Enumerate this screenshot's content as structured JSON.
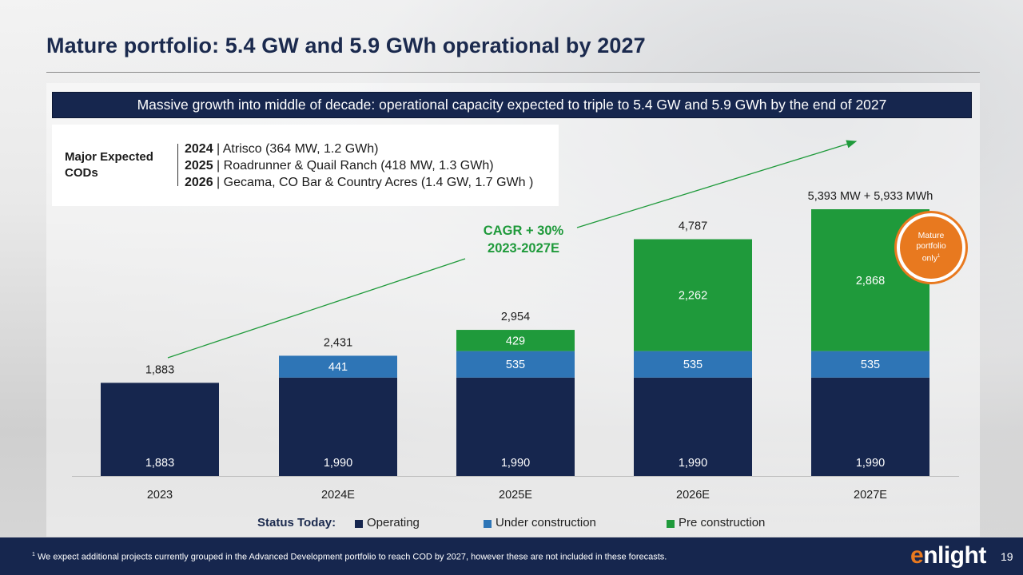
{
  "title": "Mature portfolio: 5.4 GW and 5.9 GWh operational by 2027",
  "banner": "Massive growth into middle of decade: operational capacity expected to triple to 5.4 GW and 5.9 GWh by the end of 2027",
  "cods": {
    "label": "Major Expected CODs",
    "items": [
      {
        "year": "2024",
        "text": " | Atrisco (364 MW, 1.2 GWh)"
      },
      {
        "year": "2025",
        "text": " | Roadrunner & Quail Ranch (418 MW, 1.3 GWh)"
      },
      {
        "year": "2026",
        "text": " | Gecama, CO Bar & Country Acres (1.4 GW, 1.7 GWh )"
      }
    ]
  },
  "cagr": {
    "line1": "CAGR + 30%",
    "line2": "2023-2027E"
  },
  "badge": {
    "line1": "Mature",
    "line2": "portfolio",
    "line3": "only",
    "sup": "1"
  },
  "chart_data": {
    "type": "bar",
    "stacked": true,
    "categories": [
      "2023",
      "2024E",
      "2025E",
      "2026E",
      "2027E"
    ],
    "series": [
      {
        "name": "Operating",
        "color": "#16264e",
        "values": [
          1883,
          1990,
          1990,
          1990,
          1990
        ]
      },
      {
        "name": "Under construction",
        "color": "#2e75b6",
        "values": [
          0,
          441,
          535,
          535,
          535
        ]
      },
      {
        "name": "Pre construction",
        "color": "#1f9a3b",
        "values": [
          0,
          0,
          429,
          2262,
          2868
        ]
      }
    ],
    "segment_labels": [
      [
        "1,883",
        "1,990",
        "1,990",
        "1,990",
        "1,990"
      ],
      [
        "",
        "441",
        "535",
        "535",
        "535"
      ],
      [
        "",
        "",
        "429",
        "2,262",
        "2,868"
      ]
    ],
    "totals": [
      1883,
      2431,
      2954,
      4787,
      5393
    ],
    "total_labels": [
      "1,883",
      "2,431",
      "2,954",
      "4,787",
      "5,393 MW + 5,933 MWh"
    ],
    "ylim": [
      0,
      5393
    ],
    "legend_title": "Status Today:",
    "legend_position": "bottom",
    "grid": false
  },
  "footer": {
    "footnote_sup": "1",
    "footnote": " We expect additional projects currently grouped in the Advanced Development portfolio to reach COD by 2027, however these are not included in these forecasts.",
    "logo_e": "e",
    "logo_rest": "nlight",
    "page": "19"
  }
}
